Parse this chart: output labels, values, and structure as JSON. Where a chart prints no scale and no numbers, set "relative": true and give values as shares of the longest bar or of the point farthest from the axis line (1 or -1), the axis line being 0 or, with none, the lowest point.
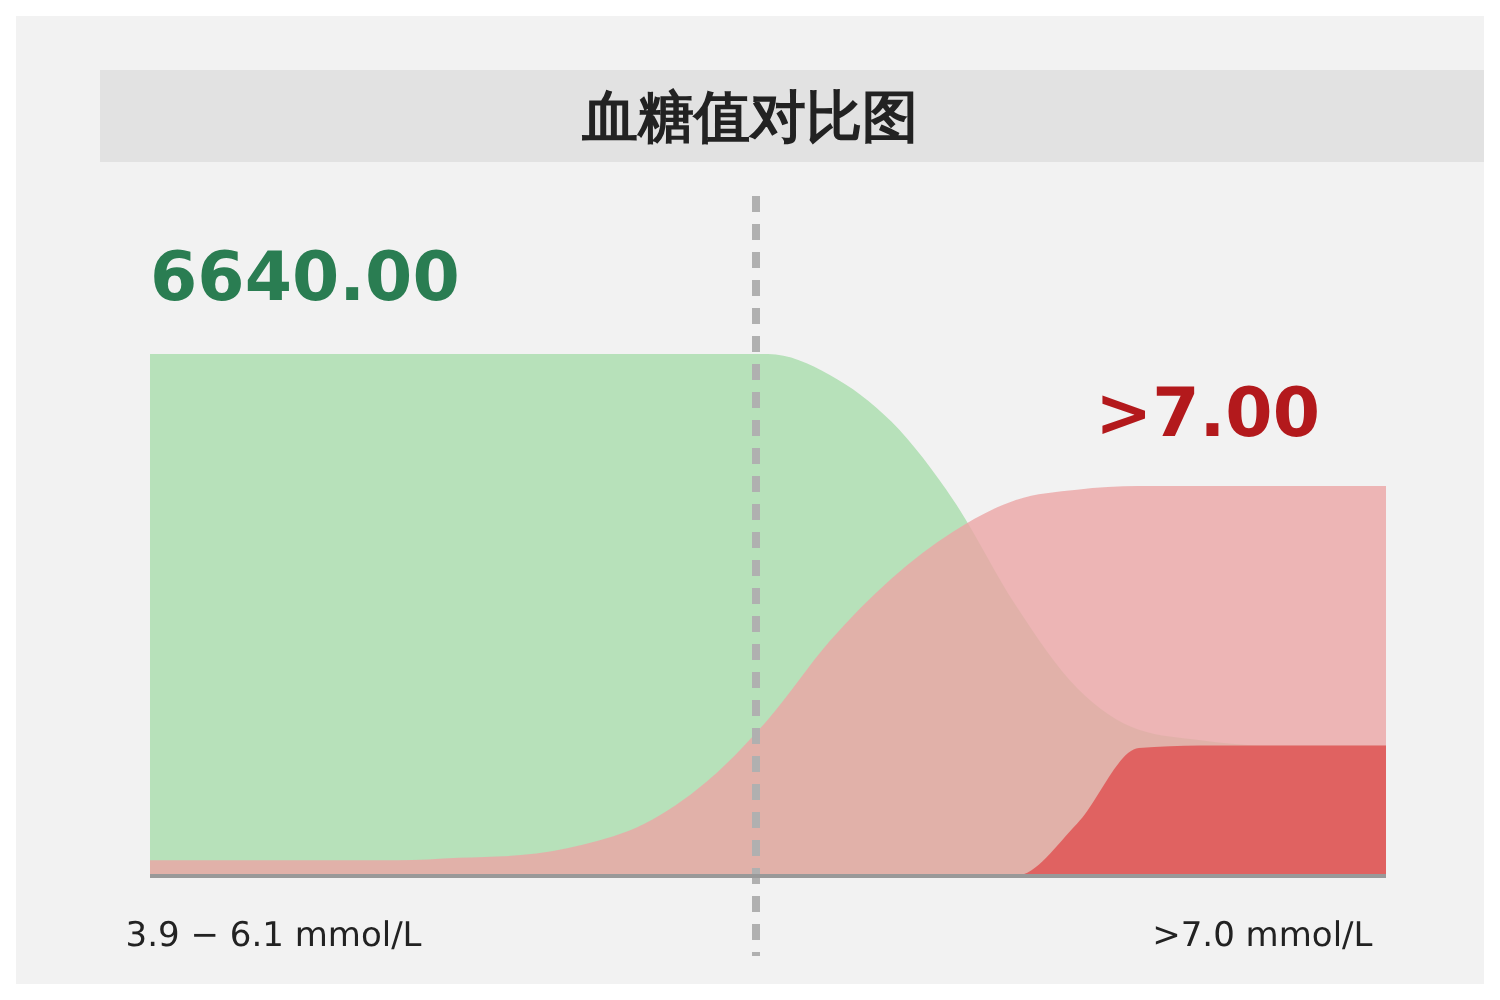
{
  "chart_data": {
    "type": "area",
    "title": "血糖值对比图",
    "relative": true,
    "categories": [
      null,
      null,
      "3.9 − 6.1 mmol/L",
      null,
      null,
      null,
      null,
      null,
      null,
      null,
      null,
      null,
      null,
      null,
      null,
      null,
      null,
      null,
      ">7.0 mmol/L",
      null,
      null
    ],
    "tick_labels": "x",
    "series": [
      {
        "color": "#a8dcab",
        "values": [
          1,
          1,
          1,
          1,
          1,
          1,
          1,
          1,
          1,
          1,
          1,
          0.96,
          0.87,
          0.72,
          0.52,
          0.36,
          0.28,
          0.26,
          0.25,
          0.25,
          0.25
        ]
      },
      {
        "color": "#eba5a5",
        "values": [
          0.03,
          0.03,
          0.03,
          0.03,
          0.03,
          0.035,
          0.04,
          0.06,
          0.1,
          0.18,
          0.3,
          0.45,
          0.57,
          0.66,
          0.72,
          0.74,
          0.747,
          0.747,
          0.747,
          0.747,
          0.747
        ]
      },
      {
        "color": "#e04f4f",
        "values": [
          0,
          0,
          0,
          0,
          0,
          0,
          0,
          0,
          0,
          0,
          0,
          0,
          0,
          0,
          0,
          0.1,
          0.245,
          0.25,
          0.25,
          0.25,
          0.25
        ]
      }
    ],
    "annotations": [
      "6640.00",
      ">7.00"
    ]
  }
}
